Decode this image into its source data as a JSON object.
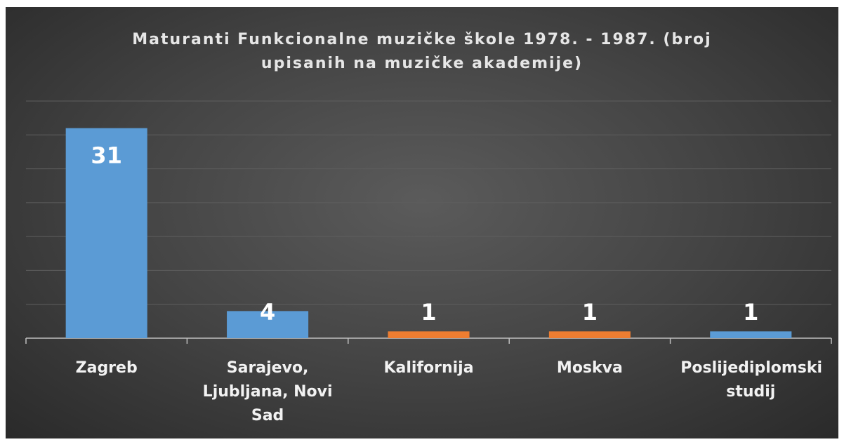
{
  "chart_data": {
    "type": "bar",
    "title": "Maturanti Funkcionalne muzičke škole 1978. - 1987. (broj upisanih na muzičke akademije)",
    "categories": [
      "Zagreb",
      "Sarajevo, Ljubljana, Novi Sad",
      "Kalifornija",
      "Moskva",
      "Poslijediplomski studij"
    ],
    "values": [
      31,
      4,
      1,
      1,
      1
    ],
    "colors": [
      "#5b9bd5",
      "#5b9bd5",
      "#ed7d31",
      "#ed7d31",
      "#5b9bd5"
    ],
    "ylim": [
      0,
      35
    ],
    "yticks": [
      0,
      5,
      10,
      15,
      20,
      25,
      30,
      35
    ],
    "grid": true
  }
}
